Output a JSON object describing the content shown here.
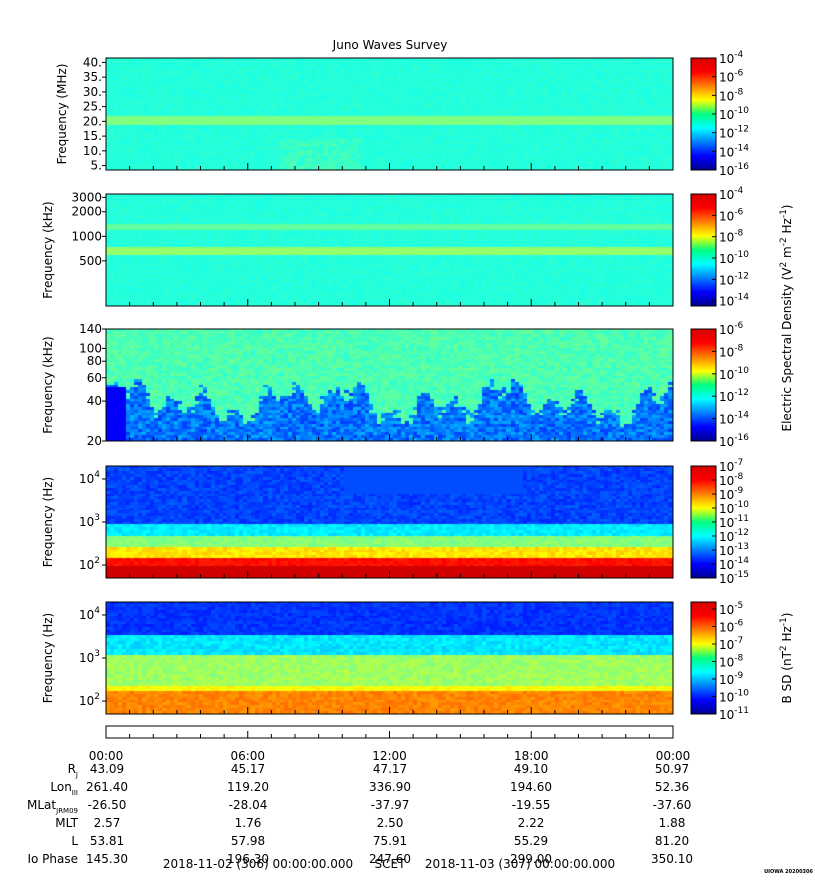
{
  "chart_data": {
    "type": "heatmap",
    "title": "Juno Waves Survey",
    "panels": [
      {
        "kind": "E",
        "ylabel": "Frequency (MHz)",
        "yticks": [
          "40.",
          "35.",
          "30.",
          "25.",
          "20.",
          "15.",
          "10.",
          "5."
        ],
        "ytick_values": [
          40,
          35,
          30,
          25,
          20,
          15,
          10,
          5
        ],
        "ylim": [
          3.5,
          41.5
        ],
        "yscale": "linear",
        "cbar_ticks": [
          "-4",
          "-6",
          "-8",
          "-10",
          "-12",
          "-14",
          "-16"
        ],
        "cbar_range": [
          -4,
          -16
        ]
      },
      {
        "kind": "E",
        "ylabel": "Frequency (kHz)",
        "yticks": [
          "3000",
          "2000",
          "1000",
          "500"
        ],
        "ytick_values": [
          3000,
          2000,
          1000,
          500
        ],
        "ylim": [
          140,
          3300
        ],
        "yscale": "log",
        "cbar_ticks": [
          "-4",
          "-6",
          "-8",
          "-10",
          "-12",
          "-14"
        ],
        "cbar_range": [
          -4,
          -14.5
        ]
      },
      {
        "kind": "E",
        "ylabel": "Frequency (kHz)",
        "yticks": [
          "140",
          "100",
          "80",
          "60",
          "40",
          "20"
        ],
        "ytick_values": [
          140,
          100,
          80,
          60,
          40,
          20
        ],
        "ylim": [
          20,
          140
        ],
        "yscale": "log",
        "cbar_ticks": [
          "-6",
          "-8",
          "-10",
          "-12",
          "-14",
          "-16"
        ],
        "cbar_range": [
          -6,
          -16
        ]
      },
      {
        "kind": "E",
        "ylabel": "Frequency (Hz)",
        "yticks": [
          "4",
          "3",
          "2"
        ],
        "ytick_values": [
          10000,
          1000,
          100
        ],
        "ylim": [
          50,
          20000
        ],
        "yscale": "log",
        "cbar_ticks": [
          "-7",
          "-8",
          "-9",
          "-10",
          "-11",
          "-12",
          "-13",
          "-14",
          "-15"
        ],
        "cbar_range": [
          -7,
          -15
        ]
      },
      {
        "kind": "B",
        "ylabel": "Frequency (Hz)",
        "yticks": [
          "4",
          "3",
          "2"
        ],
        "ytick_values": [
          10000,
          1000,
          100
        ],
        "ylim": [
          50,
          20000
        ],
        "yscale": "log",
        "cbar_ticks": [
          "-5",
          "-6",
          "-7",
          "-8",
          "-9",
          "-10",
          "-11"
        ],
        "cbar_range": [
          -4.6,
          -11
        ]
      }
    ],
    "colorbar_label_E": [
      "Electric Spectral Density (V",
      "2",
      " m",
      "-2",
      " Hz",
      "-1",
      ")"
    ],
    "colorbar_label_B": [
      "B SD (nT",
      "2",
      " Hz",
      "-1",
      ")"
    ],
    "x_hours": [
      0,
      6,
      12,
      18,
      24
    ],
    "x_ticklabels": [
      "00:00",
      "06:00",
      "12:00",
      "18:00",
      "00:00"
    ],
    "ephemeris": [
      {
        "label": "R",
        "sub": "J",
        "values": [
          "43.09",
          "45.17",
          "47.17",
          "49.10",
          "50.97"
        ]
      },
      {
        "label": "Lon",
        "sub": "III",
        "values": [
          "261.40",
          "119.20",
          "336.90",
          "194.60",
          "52.36"
        ]
      },
      {
        "label": "MLat",
        "sub": "JRM09",
        "values": [
          "-26.50",
          "-28.04",
          "-37.97",
          "-19.55",
          "-37.60"
        ]
      },
      {
        "label": "MLT",
        "sub": "",
        "values": [
          "2.57",
          "1.76",
          "2.50",
          "2.22",
          "1.88"
        ]
      },
      {
        "label": "L",
        "sub": "",
        "values": [
          "53.81",
          "57.98",
          "75.91",
          "55.29",
          "81.20"
        ]
      },
      {
        "label": "Io Phase",
        "sub": "",
        "values": [
          "145.30",
          "196.30",
          "247.60",
          "299.00",
          "350.10"
        ]
      }
    ],
    "scet_left": "2018-11-02 (306) 00:00:00.000",
    "scet_center": "SCET",
    "scet_right": "2018-11-03 (307) 00:00:00.000",
    "footer_stamp": "UIOWA 20200306"
  }
}
